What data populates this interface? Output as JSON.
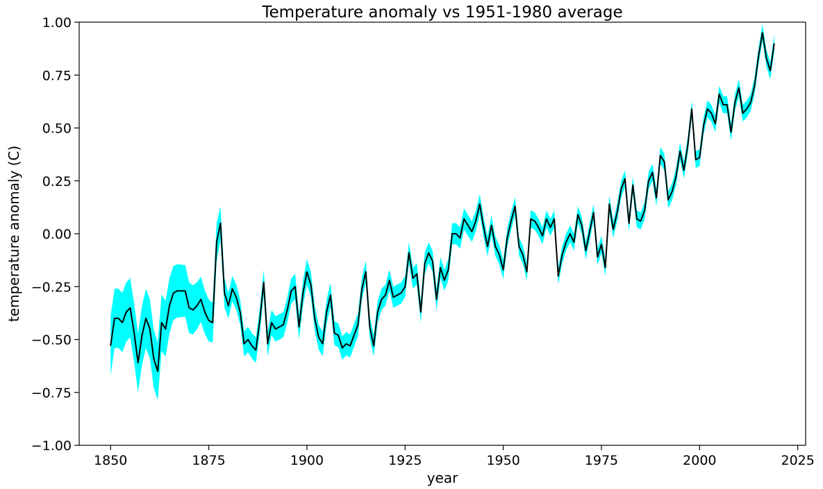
{
  "chart_data": {
    "type": "line",
    "title": "Temperature anomaly vs 1951-1980 average",
    "xlabel": "year",
    "ylabel": "temperature anomaly (C)",
    "xlim": [
      1842,
      2027
    ],
    "ylim": [
      -1.0,
      1.0
    ],
    "x_ticks": [
      1850,
      1875,
      1900,
      1925,
      1950,
      1975,
      2000,
      2025
    ],
    "x_tick_labels": [
      "1850",
      "1875",
      "1900",
      "1925",
      "1950",
      "1975",
      "2000",
      "2025"
    ],
    "y_ticks": [
      -1.0,
      -0.75,
      -0.5,
      -0.25,
      0.0,
      0.25,
      0.5,
      0.75,
      1.0
    ],
    "y_tick_labels": [
      "−1.00",
      "−0.75",
      "−0.50",
      "−0.25",
      "0.00",
      "0.25",
      "0.50",
      "0.75",
      "1.00"
    ],
    "grid": false,
    "line_color": "#000000",
    "band_color": "#00ffff",
    "x_start": 1850,
    "x_end": 2019,
    "series": [
      {
        "name": "temperature anomaly",
        "knots": [
          [
            1850,
            -0.53
          ],
          [
            1851,
            -0.4
          ],
          [
            1852,
            -0.4
          ],
          [
            1853,
            -0.42
          ],
          [
            1854,
            -0.37
          ],
          [
            1855,
            -0.35
          ],
          [
            1856,
            -0.47
          ],
          [
            1857,
            -0.61
          ],
          [
            1858,
            -0.48
          ],
          [
            1859,
            -0.4
          ],
          [
            1860,
            -0.45
          ],
          [
            1861,
            -0.59
          ],
          [
            1862,
            -0.65
          ],
          [
            1863,
            -0.42
          ],
          [
            1864,
            -0.45
          ],
          [
            1865,
            -0.34
          ],
          [
            1866,
            -0.28
          ],
          [
            1867,
            -0.27
          ],
          [
            1868,
            -0.27
          ],
          [
            1869,
            -0.27
          ],
          [
            1870,
            -0.35
          ],
          [
            1871,
            -0.36
          ],
          [
            1872,
            -0.34
          ],
          [
            1873,
            -0.31
          ],
          [
            1874,
            -0.37
          ],
          [
            1875,
            -0.41
          ],
          [
            1876,
            -0.42
          ],
          [
            1877,
            -0.04
          ],
          [
            1878,
            0.05
          ],
          [
            1879,
            -0.28
          ],
          [
            1880,
            -0.34
          ],
          [
            1881,
            -0.26
          ],
          [
            1882,
            -0.3
          ],
          [
            1883,
            -0.37
          ],
          [
            1884,
            -0.52
          ],
          [
            1885,
            -0.5
          ],
          [
            1886,
            -0.53
          ],
          [
            1887,
            -0.55
          ],
          [
            1888,
            -0.41
          ],
          [
            1889,
            -0.23
          ],
          [
            1890,
            -0.52
          ],
          [
            1891,
            -0.42
          ],
          [
            1892,
            -0.45
          ],
          [
            1893,
            -0.44
          ],
          [
            1894,
            -0.43
          ],
          [
            1895,
            -0.36
          ],
          [
            1896,
            -0.27
          ],
          [
            1897,
            -0.25
          ],
          [
            1898,
            -0.44
          ],
          [
            1899,
            -0.28
          ],
          [
            1900,
            -0.18
          ],
          [
            1901,
            -0.24
          ],
          [
            1902,
            -0.4
          ],
          [
            1903,
            -0.49
          ],
          [
            1904,
            -0.52
          ],
          [
            1905,
            -0.37
          ],
          [
            1906,
            -0.29
          ],
          [
            1907,
            -0.47
          ],
          [
            1908,
            -0.48
          ],
          [
            1909,
            -0.54
          ],
          [
            1910,
            -0.52
          ],
          [
            1911,
            -0.53
          ],
          [
            1912,
            -0.48
          ],
          [
            1913,
            -0.43
          ],
          [
            1914,
            -0.26
          ],
          [
            1915,
            -0.18
          ],
          [
            1916,
            -0.44
          ],
          [
            1917,
            -0.53
          ],
          [
            1918,
            -0.37
          ],
          [
            1919,
            -0.31
          ],
          [
            1920,
            -0.29
          ],
          [
            1921,
            -0.22
          ],
          [
            1922,
            -0.3
          ],
          [
            1923,
            -0.29
          ],
          [
            1924,
            -0.28
          ],
          [
            1925,
            -0.25
          ],
          [
            1926,
            -0.09
          ],
          [
            1927,
            -0.21
          ],
          [
            1928,
            -0.19
          ],
          [
            1929,
            -0.37
          ],
          [
            1930,
            -0.14
          ],
          [
            1931,
            -0.09
          ],
          [
            1932,
            -0.13
          ],
          [
            1933,
            -0.31
          ],
          [
            1934,
            -0.16
          ],
          [
            1935,
            -0.22
          ],
          [
            1936,
            -0.17
          ],
          [
            1937,
            0.0
          ],
          [
            1938,
            0.0
          ],
          [
            1939,
            -0.02
          ],
          [
            1940,
            0.07
          ],
          [
            1941,
            0.04
          ],
          [
            1942,
            0.01
          ],
          [
            1943,
            0.06
          ],
          [
            1944,
            0.14
          ],
          [
            1945,
            0.03
          ],
          [
            1946,
            -0.06
          ],
          [
            1947,
            0.04
          ],
          [
            1948,
            -0.06
          ],
          [
            1949,
            -0.1
          ],
          [
            1950,
            -0.17
          ],
          [
            1951,
            -0.02
          ],
          [
            1952,
            0.06
          ],
          [
            1953,
            0.13
          ],
          [
            1954,
            -0.06
          ],
          [
            1955,
            -0.1
          ],
          [
            1956,
            -0.18
          ],
          [
            1957,
            0.07
          ],
          [
            1958,
            0.06
          ],
          [
            1959,
            0.03
          ],
          [
            1960,
            -0.01
          ],
          [
            1961,
            0.07
          ],
          [
            1962,
            0.03
          ],
          [
            1963,
            0.07
          ],
          [
            1964,
            -0.2
          ],
          [
            1965,
            -0.1
          ],
          [
            1966,
            -0.04
          ],
          [
            1967,
            0.0
          ],
          [
            1968,
            -0.04
          ],
          [
            1969,
            0.09
          ],
          [
            1970,
            0.04
          ],
          [
            1971,
            -0.08
          ],
          [
            1972,
            0.01
          ],
          [
            1973,
            0.1
          ],
          [
            1974,
            -0.11
          ],
          [
            1975,
            -0.05
          ],
          [
            1976,
            -0.16
          ],
          [
            1977,
            0.14
          ],
          [
            1978,
            0.02
          ],
          [
            1979,
            0.1
          ],
          [
            1980,
            0.21
          ],
          [
            1981,
            0.26
          ],
          [
            1982,
            0.05
          ],
          [
            1983,
            0.23
          ],
          [
            1984,
            0.07
          ],
          [
            1985,
            0.06
          ],
          [
            1986,
            0.11
          ],
          [
            1987,
            0.25
          ],
          [
            1988,
            0.29
          ],
          [
            1989,
            0.17
          ],
          [
            1990,
            0.37
          ],
          [
            1991,
            0.34
          ],
          [
            1992,
            0.16
          ],
          [
            1993,
            0.2
          ],
          [
            1994,
            0.27
          ],
          [
            1995,
            0.39
          ],
          [
            1996,
            0.3
          ],
          [
            1997,
            0.42
          ],
          [
            1998,
            0.59
          ],
          [
            1999,
            0.35
          ],
          [
            2000,
            0.36
          ],
          [
            2001,
            0.51
          ],
          [
            2002,
            0.59
          ],
          [
            2003,
            0.57
          ],
          [
            2004,
            0.52
          ],
          [
            2005,
            0.66
          ],
          [
            2006,
            0.61
          ],
          [
            2007,
            0.61
          ],
          [
            2008,
            0.48
          ],
          [
            2009,
            0.62
          ],
          [
            2010,
            0.69
          ],
          [
            2011,
            0.57
          ],
          [
            2012,
            0.59
          ],
          [
            2013,
            0.62
          ],
          [
            2014,
            0.7
          ],
          [
            2015,
            0.84
          ],
          [
            2016,
            0.95
          ],
          [
            2017,
            0.83
          ],
          [
            2018,
            0.77
          ],
          [
            2019,
            0.9
          ]
        ]
      }
    ],
    "uncertainty_halfwidth": [
      [
        1850,
        0.14
      ],
      [
        1860,
        0.14
      ],
      [
        1870,
        0.12
      ],
      [
        1877,
        0.09
      ],
      [
        1880,
        0.06
      ],
      [
        1900,
        0.06
      ],
      [
        1920,
        0.05
      ],
      [
        1940,
        0.05
      ],
      [
        1960,
        0.04
      ],
      [
        1980,
        0.04
      ],
      [
        2000,
        0.04
      ],
      [
        2019,
        0.04
      ]
    ]
  }
}
